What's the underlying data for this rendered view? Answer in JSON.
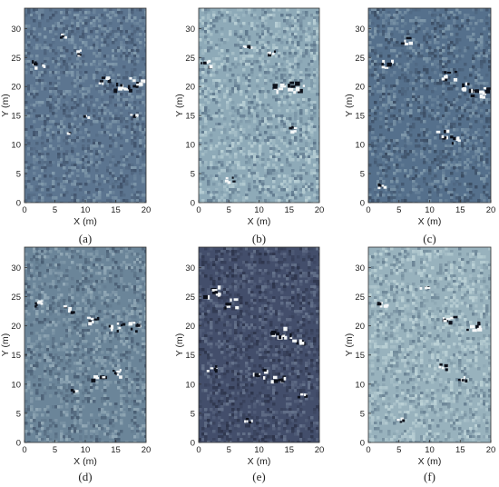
{
  "chart_data": [
    {
      "type": "heatmap",
      "panel_label": "(a)",
      "xlabel": "X (m)",
      "ylabel": "Y (m)",
      "xticks": [
        0,
        5,
        10,
        15,
        20
      ],
      "yticks": [
        0,
        5,
        10,
        15,
        20,
        25,
        30
      ],
      "xlim": [
        0,
        20
      ],
      "ylim": [
        0,
        33.5
      ],
      "colormap": [
        "#2f3d54",
        "#5c7590",
        "#8ba4b4"
      ],
      "grid": false,
      "anomalies": [
        {
          "x": 2,
          "y": 24,
          "strength": 0.8
        },
        {
          "x": 6,
          "y": 29,
          "strength": 0.5
        },
        {
          "x": 9,
          "y": 26,
          "strength": 0.5
        },
        {
          "x": 13,
          "y": 21,
          "strength": 0.8
        },
        {
          "x": 16,
          "y": 20,
          "strength": 1
        },
        {
          "x": 18,
          "y": 21,
          "strength": 0.9
        },
        {
          "x": 18,
          "y": 15,
          "strength": 0.5
        },
        {
          "x": 10,
          "y": 15,
          "strength": 0.4
        },
        {
          "x": 7,
          "y": 12,
          "strength": 0.3
        }
      ]
    },
    {
      "type": "heatmap",
      "panel_label": "(b)",
      "xlabel": "X (m)",
      "ylabel": "Y (m)",
      "xticks": [
        0,
        5,
        10,
        15,
        20
      ],
      "yticks": [
        0,
        5,
        10,
        15,
        20,
        25,
        30
      ],
      "xlim": [
        0,
        20
      ],
      "ylim": [
        0,
        33.5
      ],
      "colormap": [
        "#3f5670",
        "#8eaab8",
        "#c2d8dc"
      ],
      "grid": false,
      "anomalies": [
        {
          "x": 1,
          "y": 24,
          "strength": 0.7
        },
        {
          "x": 8,
          "y": 27,
          "strength": 0.5
        },
        {
          "x": 12,
          "y": 26,
          "strength": 0.5
        },
        {
          "x": 13,
          "y": 20,
          "strength": 0.9
        },
        {
          "x": 16,
          "y": 20,
          "strength": 1
        },
        {
          "x": 15,
          "y": 13,
          "strength": 0.6
        },
        {
          "x": 5,
          "y": 4,
          "strength": 0.5
        }
      ]
    },
    {
      "type": "heatmap",
      "panel_label": "(c)",
      "xlabel": "X (m)",
      "ylabel": "Y (m)",
      "xticks": [
        0,
        5,
        10,
        15,
        20
      ],
      "yticks": [
        0,
        5,
        10,
        15,
        20,
        25,
        30
      ],
      "xlim": [
        0,
        20
      ],
      "ylim": [
        0,
        33.5
      ],
      "colormap": [
        "#293548",
        "#55708c",
        "#8aa3b3"
      ],
      "grid": false,
      "anomalies": [
        {
          "x": 3,
          "y": 24,
          "strength": 0.8
        },
        {
          "x": 6,
          "y": 28,
          "strength": 0.7
        },
        {
          "x": 13,
          "y": 22,
          "strength": 0.8
        },
        {
          "x": 16,
          "y": 20,
          "strength": 1
        },
        {
          "x": 18,
          "y": 19,
          "strength": 1
        },
        {
          "x": 12,
          "y": 12,
          "strength": 0.7
        },
        {
          "x": 14,
          "y": 11,
          "strength": 0.6
        },
        {
          "x": 2,
          "y": 3,
          "strength": 0.5
        }
      ]
    },
    {
      "type": "heatmap",
      "panel_label": "(d)",
      "xlabel": "X (m)",
      "ylabel": "Y (m)",
      "xticks": [
        0,
        5,
        10,
        15,
        20
      ],
      "yticks": [
        0,
        5,
        10,
        15,
        20,
        25,
        30
      ],
      "xlim": [
        0,
        20
      ],
      "ylim": [
        0,
        33.5
      ],
      "colormap": [
        "#33435a",
        "#6b8599",
        "#9db3bf"
      ],
      "grid": false,
      "anomalies": [
        {
          "x": 2,
          "y": 24,
          "strength": 0.7
        },
        {
          "x": 7,
          "y": 23,
          "strength": 0.6
        },
        {
          "x": 11,
          "y": 21,
          "strength": 0.7
        },
        {
          "x": 15,
          "y": 20,
          "strength": 0.9
        },
        {
          "x": 18,
          "y": 20,
          "strength": 0.8
        },
        {
          "x": 12,
          "y": 11,
          "strength": 0.8
        },
        {
          "x": 15,
          "y": 12,
          "strength": 0.7
        },
        {
          "x": 8,
          "y": 9,
          "strength": 0.4
        }
      ]
    },
    {
      "type": "heatmap",
      "panel_label": "(e)",
      "xlabel": "X (m)",
      "ylabel": "Y (m)",
      "xticks": [
        0,
        5,
        10,
        15,
        20
      ],
      "yticks": [
        0,
        5,
        10,
        15,
        20,
        25,
        30
      ],
      "xlim": [
        0,
        20
      ],
      "ylim": [
        0,
        33.5
      ],
      "colormap": [
        "#1e2336",
        "#434e6b",
        "#6e7c94"
      ],
      "grid": false,
      "anomalies": [
        {
          "x": 2,
          "y": 26,
          "strength": 1
        },
        {
          "x": 5,
          "y": 24,
          "strength": 0.8
        },
        {
          "x": 13,
          "y": 19,
          "strength": 1
        },
        {
          "x": 16,
          "y": 18,
          "strength": 0.9
        },
        {
          "x": 10,
          "y": 12,
          "strength": 0.8
        },
        {
          "x": 13,
          "y": 11,
          "strength": 0.8
        },
        {
          "x": 2,
          "y": 13,
          "strength": 0.6
        },
        {
          "x": 8,
          "y": 4,
          "strength": 0.5
        },
        {
          "x": 17,
          "y": 8,
          "strength": 0.5
        }
      ]
    },
    {
      "type": "heatmap",
      "panel_label": "(f)",
      "xlabel": "X (m)",
      "ylabel": "Y (m)",
      "xticks": [
        0,
        5,
        10,
        15,
        20
      ],
      "yticks": [
        0,
        5,
        10,
        15,
        20,
        25,
        30
      ],
      "xlim": [
        0,
        20
      ],
      "ylim": [
        0,
        33.5
      ],
      "colormap": [
        "#4a6278",
        "#98b2bd",
        "#c5dadd"
      ],
      "grid": false,
      "anomalies": [
        {
          "x": 2,
          "y": 24,
          "strength": 0.7
        },
        {
          "x": 9,
          "y": 27,
          "strength": 0.5
        },
        {
          "x": 13,
          "y": 21,
          "strength": 0.8
        },
        {
          "x": 17,
          "y": 20,
          "strength": 0.9
        },
        {
          "x": 12,
          "y": 13,
          "strength": 0.6
        },
        {
          "x": 15,
          "y": 11,
          "strength": 0.6
        },
        {
          "x": 5,
          "y": 4,
          "strength": 0.4
        }
      ]
    }
  ]
}
